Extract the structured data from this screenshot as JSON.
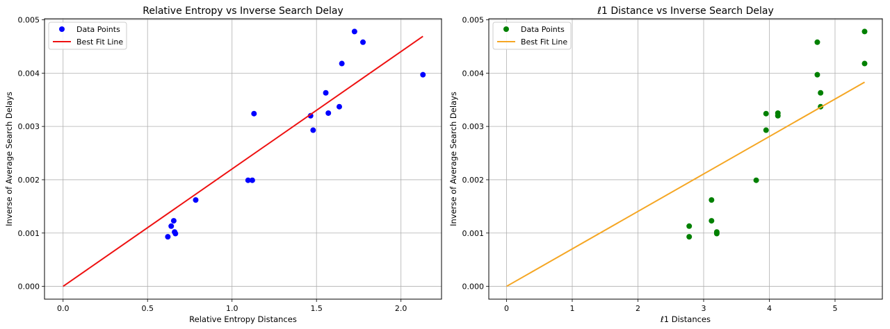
{
  "chart_data": [
    {
      "type": "scatter",
      "title": "Relative Entropy vs Inverse Search Delay",
      "xlabel": "Relative Entropy Distances",
      "ylabel": "Inverse of Average Search Delays",
      "xlim": [
        -0.11,
        2.24
      ],
      "ylim": [
        -0.00024,
        0.00502
      ],
      "xticks": [
        0.0,
        0.5,
        1.0,
        1.5,
        2.0
      ],
      "xtick_labels": [
        "0.0",
        "0.5",
        "1.0",
        "1.5",
        "2.0"
      ],
      "yticks": [
        0.0,
        0.001,
        0.002,
        0.003,
        0.004,
        0.005
      ],
      "ytick_labels": [
        "0.000",
        "0.001",
        "0.002",
        "0.003",
        "0.004",
        "0.005"
      ],
      "grid": true,
      "legend_position": "top-left",
      "series": [
        {
          "name": "Data Points",
          "kind": "scatter",
          "color": "#0000ff",
          "x": [
            0.62,
            0.64,
            0.655,
            0.66,
            0.665,
            0.785,
            1.095,
            1.12,
            1.13,
            1.465,
            1.48,
            1.555,
            1.57,
            1.635,
            1.65,
            1.725,
            1.775,
            2.13
          ],
          "y": [
            0.00093,
            0.00113,
            0.00123,
            0.00102,
            0.00099,
            0.00162,
            0.00199,
            0.00199,
            0.00324,
            0.0032,
            0.00293,
            0.00363,
            0.00325,
            0.00337,
            0.00418,
            0.00478,
            0.00458,
            0.00397
          ]
        },
        {
          "name": "Best Fit Line",
          "kind": "line",
          "color": "#ee1111",
          "x": [
            0.0,
            2.13
          ],
          "y": [
            0.0,
            0.00469
          ]
        }
      ]
    },
    {
      "type": "scatter",
      "title": "ℓ1 Distance vs Inverse Search Delay",
      "xlabel": "ℓ1 Distances",
      "ylabel": "Inverse of Average Search Delays",
      "xlim": [
        -0.27,
        5.72
      ],
      "ylim": [
        -0.00024,
        0.00502
      ],
      "xticks": [
        0,
        1,
        2,
        3,
        4,
        5
      ],
      "xtick_labels": [
        "0",
        "1",
        "2",
        "3",
        "4",
        "5"
      ],
      "yticks": [
        0.0,
        0.001,
        0.002,
        0.003,
        0.004,
        0.005
      ],
      "ytick_labels": [
        "0.000",
        "0.001",
        "0.002",
        "0.003",
        "0.004",
        "0.005"
      ],
      "grid": true,
      "legend_position": "top-left",
      "series": [
        {
          "name": "Data Points",
          "kind": "scatter",
          "color": "#008000",
          "x": [
            2.78,
            2.78,
            3.12,
            3.12,
            3.2,
            3.2,
            3.8,
            3.95,
            3.95,
            4.13,
            4.13,
            4.73,
            4.73,
            4.78,
            4.78,
            5.45,
            5.45
          ],
          "y": [
            0.00093,
            0.00113,
            0.00162,
            0.00123,
            0.00102,
            0.00099,
            0.00199,
            0.00324,
            0.00293,
            0.00325,
            0.0032,
            0.00458,
            0.00397,
            0.00363,
            0.00337,
            0.00478,
            0.00418
          ]
        },
        {
          "name": "Best Fit Line",
          "kind": "line",
          "color": "#f5a623",
          "x": [
            0.0,
            5.45
          ],
          "y": [
            0.0,
            0.00383
          ]
        }
      ]
    }
  ]
}
